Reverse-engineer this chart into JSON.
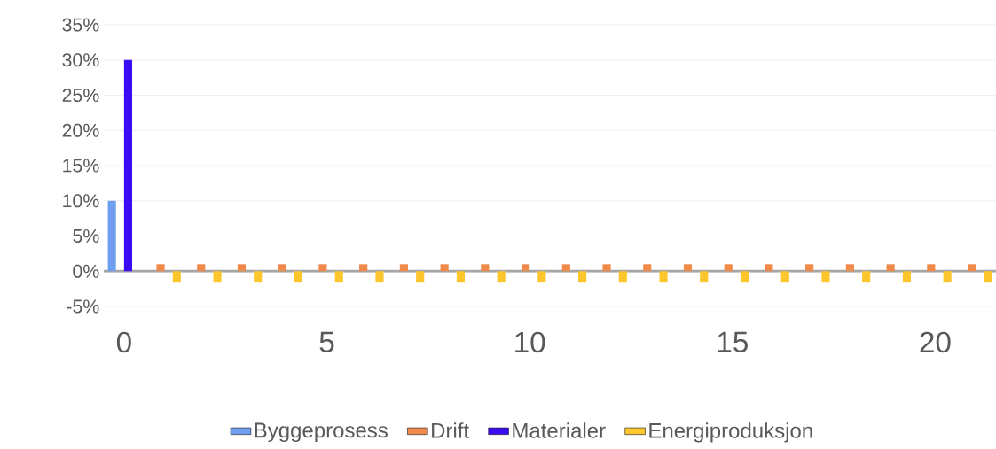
{
  "chart_data": {
    "type": "bar",
    "categories": [
      "0",
      null,
      null,
      null,
      null,
      "5",
      null,
      null,
      null,
      null,
      "10",
      null,
      null,
      null,
      null,
      "15",
      null,
      null,
      null,
      null,
      "20",
      null
    ],
    "series": [
      {
        "name": "Byggeprosess",
        "color": "#6f9ef0",
        "values": [
          10,
          null,
          null,
          null,
          null,
          null,
          null,
          null,
          null,
          null,
          null,
          null,
          null,
          null,
          null,
          null,
          null,
          null,
          null,
          null,
          null,
          null
        ]
      },
      {
        "name": "Drift",
        "color": "#f08a4b",
        "values": [
          null,
          1,
          1,
          1,
          1,
          1,
          1,
          1,
          1,
          1,
          1,
          1,
          1,
          1,
          1,
          1,
          1,
          1,
          1,
          1,
          1,
          1
        ]
      },
      {
        "name": "Materialer",
        "color": "#3a0cf2",
        "values": [
          30,
          null,
          null,
          null,
          null,
          null,
          null,
          null,
          null,
          null,
          null,
          null,
          null,
          null,
          null,
          null,
          null,
          null,
          null,
          null,
          null,
          null
        ]
      },
      {
        "name": "Energiproduksjon",
        "color": "#fcc62c",
        "values": [
          null,
          -1.5,
          -1.5,
          -1.5,
          -1.5,
          -1.5,
          -1.5,
          -1.5,
          -1.5,
          -1.5,
          -1.5,
          -1.5,
          -1.5,
          -1.5,
          -1.5,
          -1.5,
          -1.5,
          -1.5,
          -1.5,
          -1.5,
          -1.5,
          -1.5
        ]
      }
    ],
    "ylim": [
      -5,
      35
    ],
    "yticks": [
      {
        "value": -5,
        "label": "-5%"
      },
      {
        "value": 0,
        "label": "0%"
      },
      {
        "value": 5,
        "label": "5%"
      },
      {
        "value": 10,
        "label": "10%"
      },
      {
        "value": 15,
        "label": "15%"
      },
      {
        "value": 20,
        "label": "20%"
      },
      {
        "value": 25,
        "label": "25%"
      },
      {
        "value": 30,
        "label": "30%"
      },
      {
        "value": 35,
        "label": "35%"
      }
    ],
    "grid": "y",
    "legend": "bottom"
  }
}
